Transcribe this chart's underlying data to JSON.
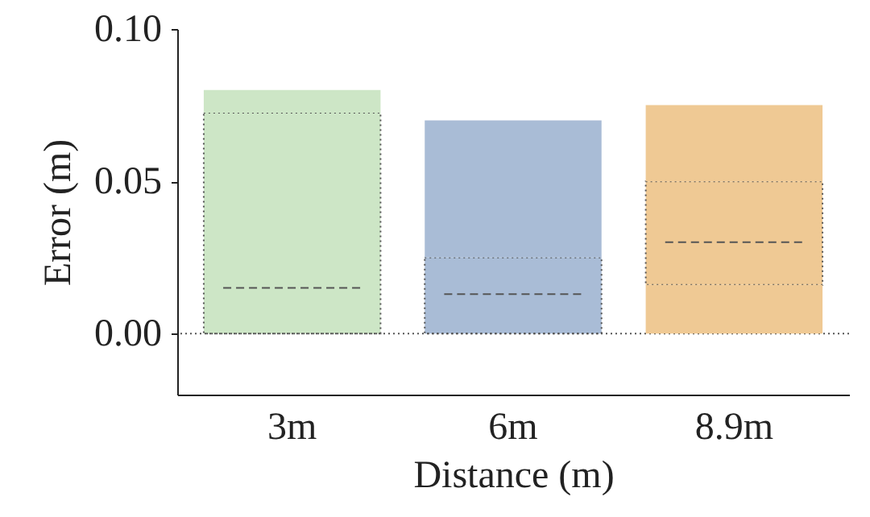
{
  "chart_data": {
    "type": "box",
    "xlabel": "Distance (m)",
    "ylabel": "Error (m)",
    "categories": [
      "3m",
      "6m",
      "8.9m"
    ],
    "colors": [
      "#cde6c6",
      "#a9bcd6",
      "#efc994"
    ],
    "boxes": [
      {
        "low": 0,
        "q1": 0,
        "median": 0.015,
        "q3": 0.0725,
        "high": 0.08
      },
      {
        "low": 0,
        "q1": 0,
        "median": 0.013,
        "q3": 0.025,
        "high": 0.07
      },
      {
        "low": 0,
        "q1": 0.016,
        "median": 0.03,
        "q3": 0.05,
        "high": 0.075
      }
    ],
    "ylim": [
      -0.02,
      0.1
    ],
    "yticks": [
      {
        "value": 0,
        "label": "0.00"
      },
      {
        "value": 0.05,
        "label": "0.05"
      },
      {
        "value": 0.1,
        "label": "0.10"
      }
    ],
    "ref_lines": [
      {
        "axis": "y",
        "value": 0,
        "line_style": "dotted",
        "color": "#555555"
      }
    ],
    "grid": false
  }
}
